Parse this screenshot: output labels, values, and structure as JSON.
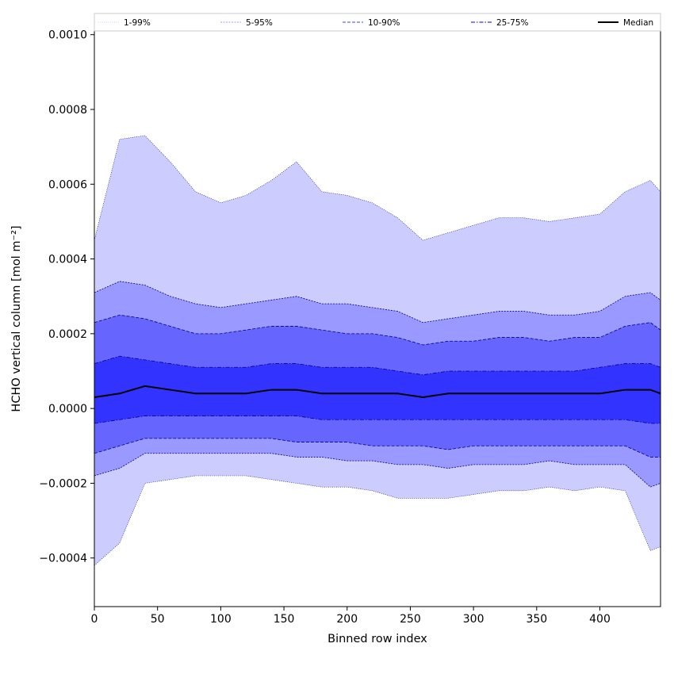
{
  "chart_data": {
    "type": "area",
    "xlabel": "Binned row index",
    "ylabel": "HCHO vertical column [mol m⁻²]",
    "xlim": [
      0,
      448
    ],
    "ylim": [
      -0.00053,
      0.00101
    ],
    "x_ticks": [
      0,
      50,
      100,
      150,
      200,
      250,
      300,
      350,
      400
    ],
    "x_tick_labels": [
      "0",
      "50",
      "100",
      "150",
      "200",
      "250",
      "300",
      "350",
      "400"
    ],
    "y_ticks": [
      -0.0004,
      -0.0002,
      0.0,
      0.0002,
      0.0004,
      0.0006,
      0.0008,
      0.001
    ],
    "y_tick_labels": [
      "−0.0004",
      "−0.0002",
      "0.0000",
      "0.0002",
      "0.0004",
      "0.0006",
      "0.0008",
      "0.0010"
    ],
    "grid": false,
    "legend_position": "top",
    "x": [
      0,
      20,
      40,
      60,
      80,
      100,
      120,
      140,
      160,
      180,
      200,
      220,
      240,
      260,
      280,
      300,
      320,
      340,
      360,
      380,
      400,
      420,
      440,
      448
    ],
    "series": [
      {
        "name": "1-99%",
        "lower": [
          -0.00042,
          -0.00036,
          -0.0002,
          -0.00019,
          -0.00018,
          -0.00018,
          -0.00018,
          -0.00019,
          -0.0002,
          -0.00021,
          -0.00021,
          -0.00022,
          -0.00024,
          -0.00024,
          -0.00024,
          -0.00023,
          -0.00022,
          -0.00022,
          -0.00021,
          -0.00022,
          -0.00021,
          -0.00022,
          -0.00038,
          -0.00037
        ],
        "upper": [
          0.00045,
          0.00072,
          0.00073,
          0.00066,
          0.00058,
          0.00055,
          0.00057,
          0.00061,
          0.00066,
          0.00058,
          0.00057,
          0.00055,
          0.00051,
          0.00045,
          0.00047,
          0.00049,
          0.00051,
          0.00051,
          0.0005,
          0.00051,
          0.00052,
          0.00058,
          0.00061,
          0.00058
        ],
        "color": "#ccccff",
        "line_style": "dotted"
      },
      {
        "name": "5-95%",
        "lower": [
          -0.00018,
          -0.00016,
          -0.00012,
          -0.00012,
          -0.00012,
          -0.00012,
          -0.00012,
          -0.00012,
          -0.00013,
          -0.00013,
          -0.00014,
          -0.00014,
          -0.00015,
          -0.00015,
          -0.00016,
          -0.00015,
          -0.00015,
          -0.00015,
          -0.00014,
          -0.00015,
          -0.00015,
          -0.00015,
          -0.00021,
          -0.0002
        ],
        "upper": [
          0.00031,
          0.00034,
          0.00033,
          0.0003,
          0.00028,
          0.00027,
          0.00028,
          0.00029,
          0.0003,
          0.00028,
          0.00028,
          0.00027,
          0.00026,
          0.00023,
          0.00024,
          0.00025,
          0.00026,
          0.00026,
          0.00025,
          0.00025,
          0.00026,
          0.0003,
          0.00031,
          0.00029
        ],
        "color": "#9999ff",
        "line_style": "dashed-thin"
      },
      {
        "name": "10-90%",
        "lower": [
          -0.00012,
          -0.0001,
          -8e-05,
          -8e-05,
          -8e-05,
          -8e-05,
          -8e-05,
          -8e-05,
          -9e-05,
          -9e-05,
          -9e-05,
          -0.0001,
          -0.0001,
          -0.0001,
          -0.00011,
          -0.0001,
          -0.0001,
          -0.0001,
          -0.0001,
          -0.0001,
          -0.0001,
          -0.0001,
          -0.00013,
          -0.00013
        ],
        "upper": [
          0.00023,
          0.00025,
          0.00024,
          0.00022,
          0.0002,
          0.0002,
          0.00021,
          0.00022,
          0.00022,
          0.00021,
          0.0002,
          0.0002,
          0.00019,
          0.00017,
          0.00018,
          0.00018,
          0.00019,
          0.00019,
          0.00018,
          0.00019,
          0.00019,
          0.00022,
          0.00023,
          0.00021
        ],
        "color": "#6666ff",
        "line_style": "dashed"
      },
      {
        "name": "25-75%",
        "lower": [
          -4e-05,
          -3e-05,
          -2e-05,
          -2e-05,
          -2e-05,
          -2e-05,
          -2e-05,
          -2e-05,
          -2e-05,
          -3e-05,
          -3e-05,
          -3e-05,
          -3e-05,
          -3e-05,
          -3e-05,
          -3e-05,
          -3e-05,
          -3e-05,
          -3e-05,
          -3e-05,
          -3e-05,
          -3e-05,
          -4e-05,
          -4e-05
        ],
        "upper": [
          0.00012,
          0.00014,
          0.00013,
          0.00012,
          0.00011,
          0.00011,
          0.00011,
          0.00012,
          0.00012,
          0.00011,
          0.00011,
          0.00011,
          0.0001,
          9e-05,
          0.0001,
          0.0001,
          0.0001,
          0.0001,
          0.0001,
          0.0001,
          0.00011,
          0.00012,
          0.00012,
          0.00011
        ],
        "color": "#3333ff",
        "line_style": "dash-dot"
      },
      {
        "name": "Median",
        "values": [
          3e-05,
          4e-05,
          6e-05,
          5e-05,
          4e-05,
          4e-05,
          4e-05,
          5e-05,
          5e-05,
          4e-05,
          4e-05,
          4e-05,
          4e-05,
          3e-05,
          4e-05,
          4e-05,
          4e-05,
          4e-05,
          4e-05,
          4e-05,
          4e-05,
          5e-05,
          5e-05,
          4e-05
        ],
        "color": "#000000",
        "line_style": "solid"
      }
    ]
  }
}
